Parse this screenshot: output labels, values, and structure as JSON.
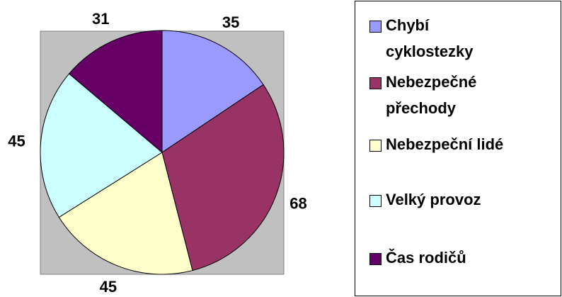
{
  "chart_data": {
    "type": "pie",
    "categories": [
      "Chybí cyklostezky",
      "Nebezpečné přechody",
      "Nebezpeční lidé",
      "Velký provoz",
      "Čas rodičů"
    ],
    "values": [
      35,
      68,
      45,
      45,
      31
    ],
    "colors": [
      "#9999ff",
      "#993366",
      "#ffffcc",
      "#ccffff",
      "#660066"
    ],
    "legend": "right"
  }
}
